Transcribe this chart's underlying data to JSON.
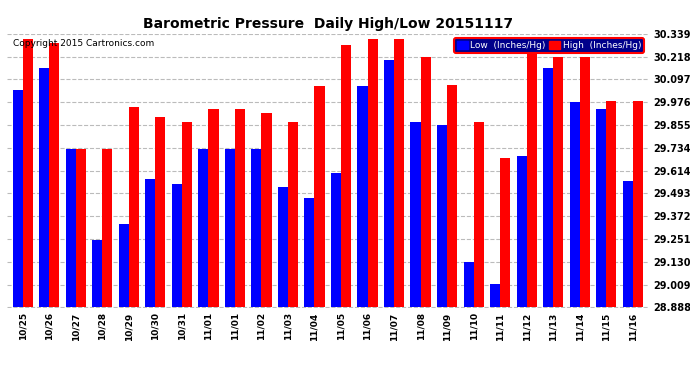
{
  "title": "Barometric Pressure  Daily High/Low 20151117",
  "copyright": "Copyright 2015 Cartronics.com",
  "legend_low": "Low  (Inches/Hg)",
  "legend_high": "High  (Inches/Hg)",
  "low_color": "#0000FF",
  "high_color": "#FF0000",
  "background_color": "#FFFFFF",
  "ylim_min": 28.888,
  "ylim_max": 30.339,
  "yticks": [
    28.888,
    29.009,
    29.13,
    29.251,
    29.372,
    29.493,
    29.614,
    29.734,
    29.855,
    29.976,
    30.097,
    30.218,
    30.339
  ],
  "categories": [
    "10/25",
    "10/26",
    "10/27",
    "10/28",
    "10/29",
    "10/30",
    "10/31",
    "11/01",
    "11/01",
    "11/02",
    "11/03",
    "11/04",
    "11/05",
    "11/06",
    "11/07",
    "11/08",
    "11/09",
    "11/10",
    "11/11",
    "11/12",
    "11/13",
    "11/14",
    "11/15",
    "11/16"
  ],
  "low_values": [
    30.04,
    30.16,
    29.73,
    29.248,
    29.33,
    29.57,
    29.54,
    29.73,
    29.73,
    29.73,
    29.527,
    29.466,
    29.6,
    30.06,
    30.2,
    29.87,
    29.855,
    29.13,
    29.01,
    29.69,
    30.157,
    29.976,
    29.94,
    29.56
  ],
  "high_values": [
    30.31,
    30.29,
    29.73,
    29.73,
    29.95,
    29.9,
    29.87,
    29.94,
    29.94,
    29.92,
    29.87,
    30.06,
    30.28,
    30.31,
    30.31,
    30.218,
    30.07,
    29.87,
    29.68,
    30.25,
    30.218,
    30.218,
    29.98,
    29.98
  ]
}
